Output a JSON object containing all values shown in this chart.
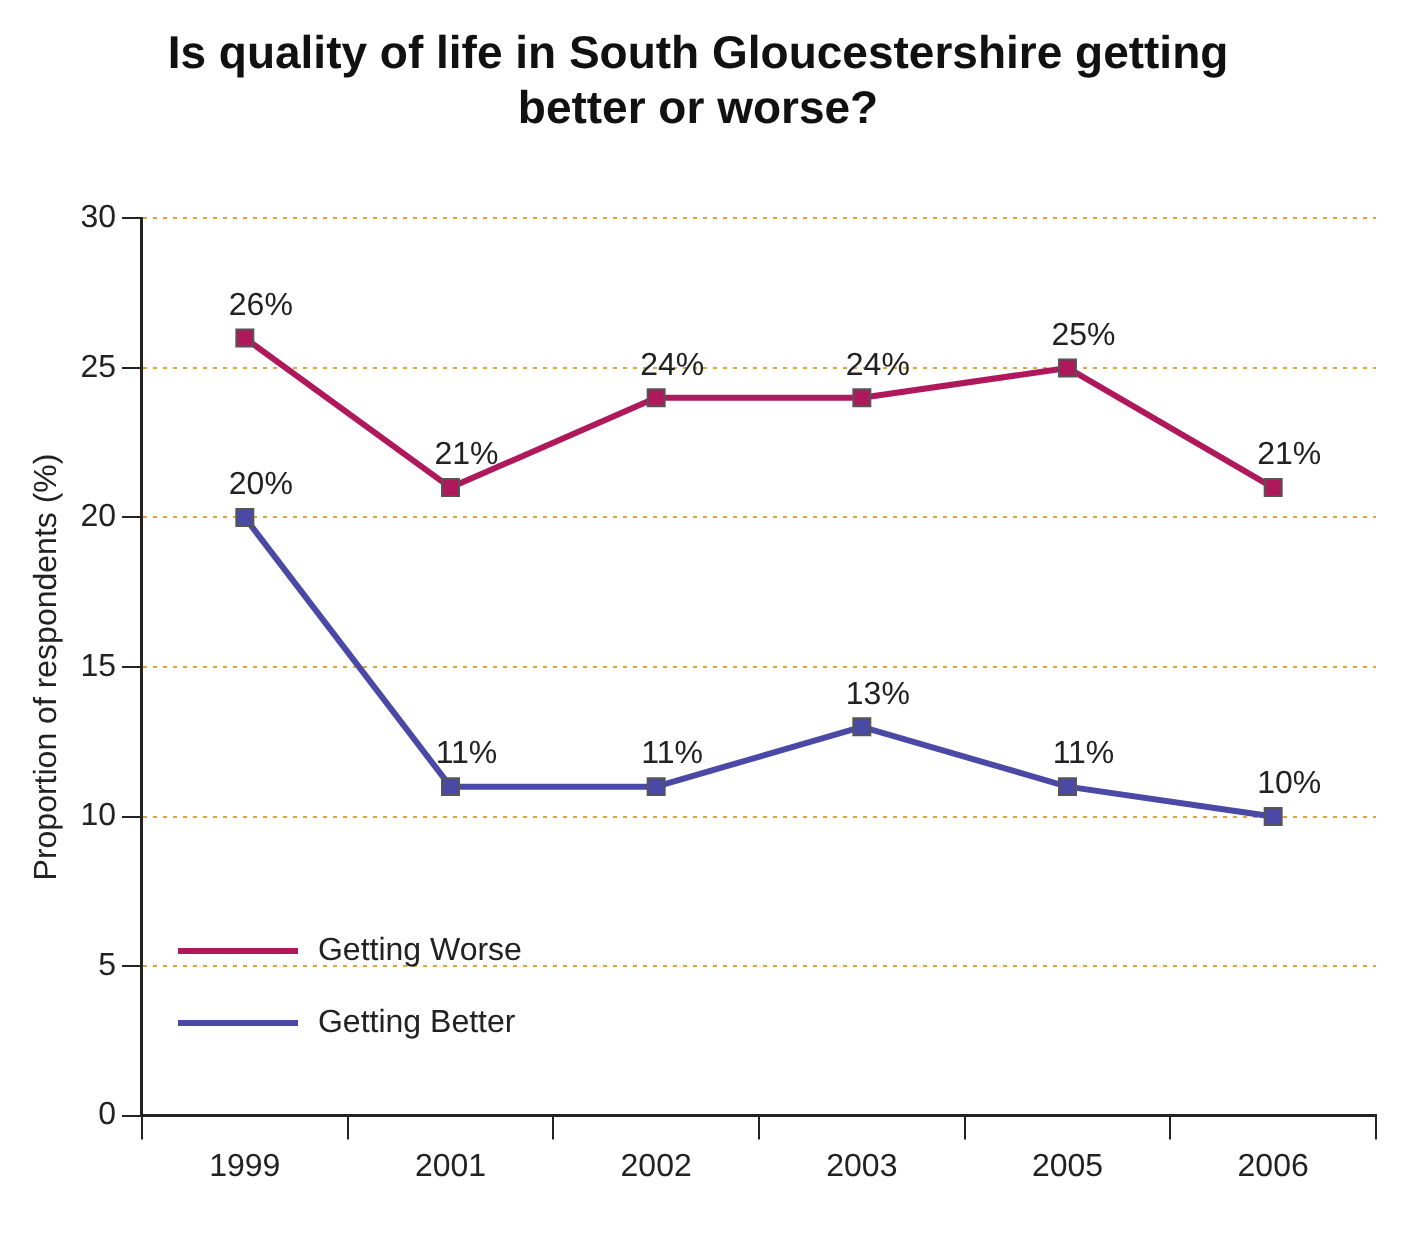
{
  "chart_data": {
    "type": "line",
    "title": [
      "Is quality of life in South Gloucestershire getting",
      "better or worse?"
    ],
    "ylabel": "Proportion of respondents (%)",
    "categories": [
      "1999",
      "2001",
      "2002",
      "2003",
      "2005",
      "2006"
    ],
    "series": [
      {
        "name": "Getting Worse",
        "color": "#b0185c",
        "values": [
          26,
          21,
          24,
          24,
          25,
          21
        ],
        "value_labels": [
          "26%",
          "21%",
          "24%",
          "24%",
          "25%",
          "21%"
        ]
      },
      {
        "name": "Getting Better",
        "color": "#4b49a6",
        "values": [
          20,
          11,
          11,
          13,
          11,
          10
        ],
        "value_labels": [
          "20%",
          "11%",
          "11%",
          "13%",
          "11%",
          "10%"
        ]
      }
    ],
    "ylim": [
      0,
      30
    ],
    "yticks": [
      0,
      5,
      10,
      15,
      20,
      25,
      30
    ],
    "grid": "y",
    "legend": "bottom left",
    "marker": "square",
    "line_style": "solid"
  }
}
